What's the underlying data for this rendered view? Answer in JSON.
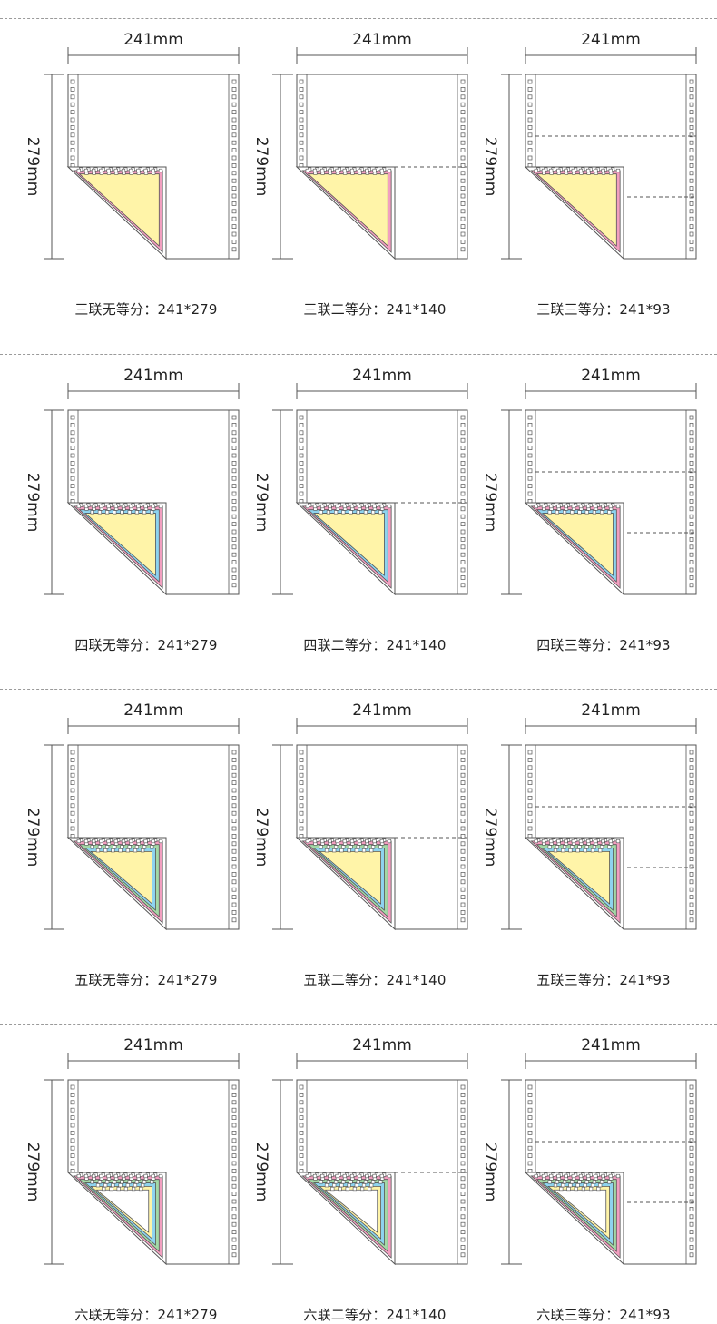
{
  "width_label": "241mm",
  "height_label": "279mm",
  "colors": {
    "line": "#555555",
    "pink": "#f29fc0",
    "blue": "#8ed3ef",
    "green": "#a3d9a6",
    "yellow": "#fff4a8",
    "white": "#ffffff"
  },
  "rows": [
    {
      "plies": 3,
      "colors": [
        "pink",
        "yellow"
      ],
      "cells": [
        {
          "divisions": 1,
          "caption": "三联无等分：241*279"
        },
        {
          "divisions": 2,
          "caption": "三联二等分：241*140"
        },
        {
          "divisions": 3,
          "caption": "三联三等分：241*93"
        }
      ]
    },
    {
      "plies": 4,
      "colors": [
        "pink",
        "blue",
        "yellow"
      ],
      "cells": [
        {
          "divisions": 1,
          "caption": "四联无等分：241*279"
        },
        {
          "divisions": 2,
          "caption": "四联二等分：241*140"
        },
        {
          "divisions": 3,
          "caption": "四联三等分：241*93"
        }
      ]
    },
    {
      "plies": 5,
      "colors": [
        "pink",
        "green",
        "blue",
        "yellow"
      ],
      "cells": [
        {
          "divisions": 1,
          "caption": "五联无等分：241*279"
        },
        {
          "divisions": 2,
          "caption": "五联二等分：241*140"
        },
        {
          "divisions": 3,
          "caption": "五联三等分：241*93"
        }
      ]
    },
    {
      "plies": 6,
      "colors": [
        "pink",
        "green",
        "blue",
        "yellow",
        "white"
      ],
      "cells": [
        {
          "divisions": 1,
          "caption": "六联无等分：241*279"
        },
        {
          "divisions": 2,
          "caption": "六联二等分：241*140"
        },
        {
          "divisions": 3,
          "caption": "六联三等分：241*93"
        }
      ]
    }
  ]
}
